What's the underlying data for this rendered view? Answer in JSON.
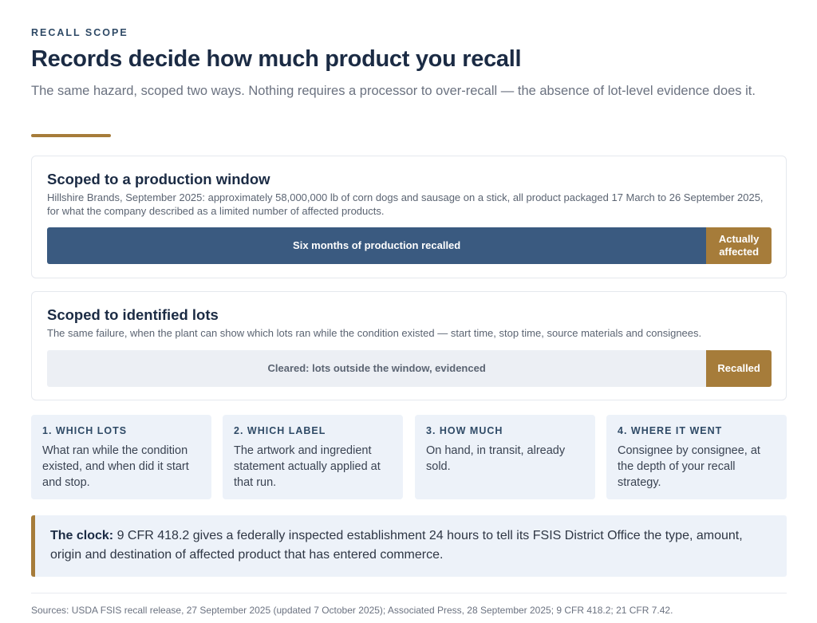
{
  "header": {
    "eyebrow": "RECALL SCOPE",
    "title": "Records decide how much product you recall",
    "subtitle": "The same hazard, scoped two ways. Nothing requires a processor to over-recall — the absence of lot-level evidence does it."
  },
  "colors": {
    "accent": "#a67c3a",
    "navy": "#3a5a80",
    "panel": "#edf2f9"
  },
  "scenarios": [
    {
      "title": "Scoped to a production window",
      "description": "Hillshire Brands, September 2025: approximately 58,000,000 lb of corn dogs and sausage on a stick, all product packaged 17 March to 26 September 2025, for what the company described as a limited number of affected products.",
      "main_label": "Six months of production recalled",
      "accent_label": "Actually affected",
      "accent_share": 0.09
    },
    {
      "title": "Scoped to identified lots",
      "description": "The same failure, when the plant can show which lots ran while the condition existed — start time, stop time, source materials and consignees.",
      "main_label": "Cleared: lots outside the window, evidenced",
      "accent_label": "Recalled",
      "accent_share": 0.09
    }
  ],
  "steps": [
    {
      "heading": "1. WHICH LOTS",
      "body": "What ran while the condition existed, and when did it start and stop."
    },
    {
      "heading": "2. WHICH LABEL",
      "body": "The artwork and ingredient statement actually applied at that run."
    },
    {
      "heading": "3. HOW MUCH",
      "body": "On hand, in transit, already sold."
    },
    {
      "heading": "4. WHERE IT WENT",
      "body": "Consignee by consignee, at the depth of your recall strategy."
    }
  ],
  "callout": {
    "label": "The clock:",
    "text": " 9 CFR 418.2 gives a federally inspected establishment 24 hours to tell its FSIS District Office the type, amount, origin and destination of affected product that has entered commerce."
  },
  "sources": "Sources: USDA FSIS recall release, 27 September 2025 (updated 7 October 2025); Associated Press, 28 September 2025; 9 CFR 418.2; 21 CFR 7.42."
}
